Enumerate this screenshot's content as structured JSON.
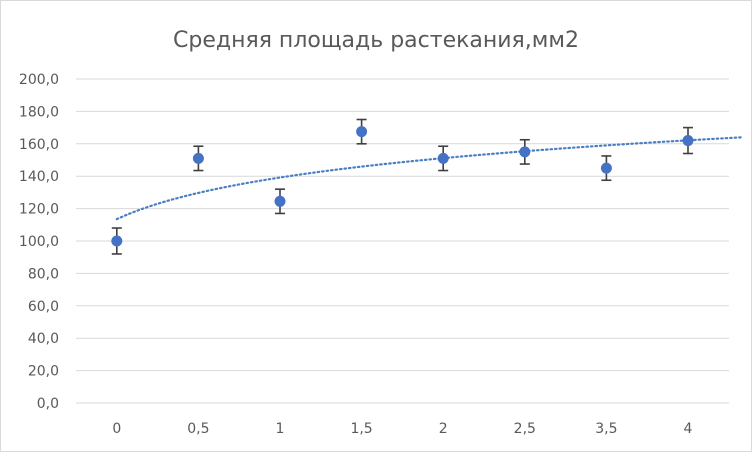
{
  "chart_data": {
    "type": "scatter",
    "title": "Средняя площадь растекания,мм2",
    "xlabel": "",
    "ylabel": "",
    "x_tick_labels": [
      "0",
      "0,5",
      "1",
      "1,5",
      "2",
      "2,5",
      "3,5",
      "4"
    ],
    "y_tick_labels": [
      "0,0",
      "20,0",
      "40,0",
      "60,0",
      "80,0",
      "100,0",
      "120,0",
      "140,0",
      "160,0",
      "180,0",
      "200,0"
    ],
    "ylim": [
      0,
      200
    ],
    "y_major_unit": 20,
    "grid": true,
    "legend": "none",
    "colors": {
      "marker": "#4472c4",
      "trendline": "#4a7fc1",
      "error_bar": "#404040"
    },
    "series": [
      {
        "x": [
          "0",
          "0,5",
          "1",
          "1,5",
          "2",
          "2,5",
          "3,5",
          "4"
        ],
        "y": [
          100.0,
          151.0,
          124.5,
          167.5,
          151.0,
          155.0,
          145.0,
          162.0
        ],
        "error": [
          8,
          7.5,
          7.5,
          7.5,
          7.5,
          7.5,
          7.5,
          8
        ]
      }
    ],
    "trendline": {
      "type": "logarithmic",
      "style": "dotted"
    }
  }
}
